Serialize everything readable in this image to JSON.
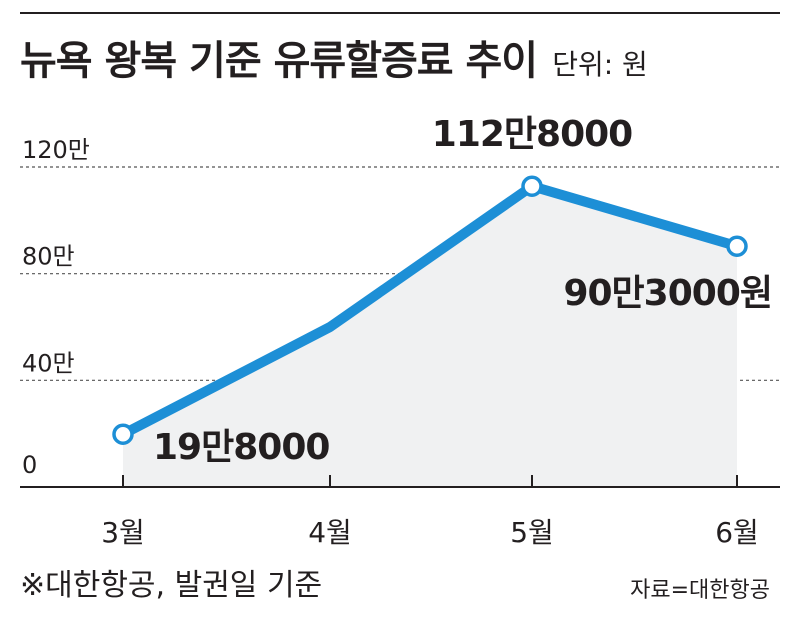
{
  "title": "뉴욕 왕복 기준 유류할증료 추이",
  "unit": "단위: 원",
  "footnote": "※대한항공, 발권일 기준",
  "source": "자료=대한항공",
  "colors": {
    "line": "#1d8fd6",
    "area": "#f0f1f2",
    "text": "#231f20",
    "grid": "#555555"
  },
  "chart_data": {
    "type": "line",
    "title": "뉴욕 왕복 기준 유류할증료 추이",
    "unit_label": "단위: 원",
    "categories": [
      "3월",
      "4월",
      "5월",
      "6월"
    ],
    "series": [
      {
        "values": [
          198000,
          600000,
          1128000,
          903000
        ]
      }
    ],
    "ylim": [
      0,
      1200000
    ],
    "yticks": [
      {
        "value": 0,
        "label": "0"
      },
      {
        "value": 400000,
        "label": "40만"
      },
      {
        "value": 800000,
        "label": "80만"
      },
      {
        "value": 1200000,
        "label": "120만"
      }
    ],
    "data_labels": [
      {
        "index": 0,
        "text": "19만8000"
      },
      {
        "index": 2,
        "text": "112만8000"
      },
      {
        "index": 3,
        "text": "90만3000원"
      }
    ],
    "grid": true,
    "area_fill": true
  }
}
